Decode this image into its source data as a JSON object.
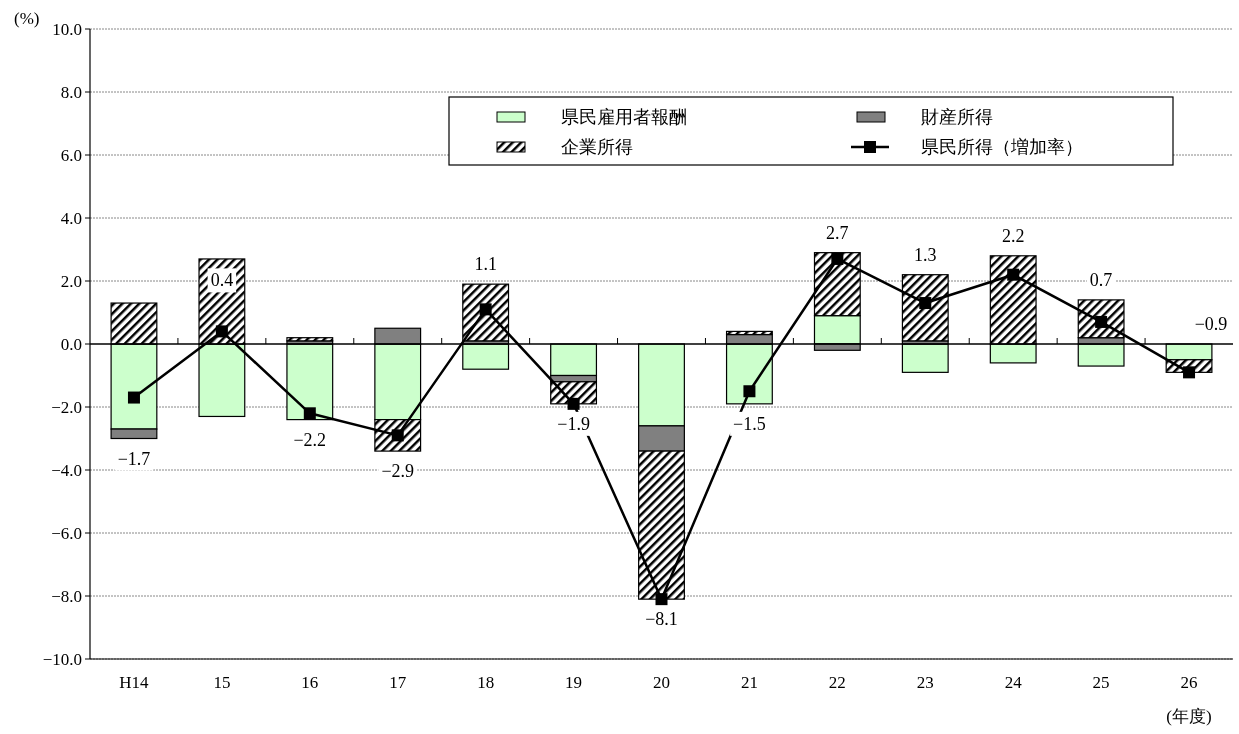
{
  "chart_data": {
    "type": "bar",
    "stacked": true,
    "xlabel": "(年度)",
    "ylabel": "(%)",
    "categories": [
      "H14",
      "15",
      "16",
      "17",
      "18",
      "19",
      "20",
      "21",
      "22",
      "23",
      "24",
      "25",
      "26"
    ],
    "series": [
      {
        "name": "県民雇用者報酬",
        "color": "#ccffcc",
        "values": [
          -2.7,
          -2.3,
          -2.4,
          -2.4,
          -0.8,
          -1.0,
          -2.6,
          -1.9,
          0.9,
          -0.9,
          -0.6,
          -0.7,
          -0.5
        ]
      },
      {
        "name": "財産所得",
        "color": "#808080",
        "values": [
          -0.3,
          0.0,
          0.1,
          0.5,
          0.1,
          -0.2,
          -0.8,
          0.3,
          -0.2,
          0.1,
          0.0,
          0.2,
          0.0
        ]
      },
      {
        "name": "企業所得",
        "color": "#000000",
        "values": [
          1.3,
          2.7,
          0.1,
          -1.0,
          1.8,
          -0.7,
          -4.7,
          0.1,
          2.0,
          2.1,
          2.8,
          1.2,
          -0.4
        ]
      },
      {
        "name": "県民所得（増加率）",
        "type": "line",
        "color": "#000000",
        "marker": "square",
        "values": [
          -1.7,
          0.4,
          -2.2,
          -2.9,
          1.1,
          -1.9,
          -8.1,
          -1.5,
          2.7,
          1.3,
          2.2,
          0.7,
          -0.9
        ],
        "value_labels": [
          "−1.7",
          "0.4",
          "−2.2",
          "−2.9",
          "1.1",
          "−1.9",
          "−8.1",
          "−1.5",
          "2.7",
          "1.3",
          "2.2",
          "0.7",
          "−0.9"
        ]
      }
    ],
    "ylim": [
      -10,
      10
    ],
    "yticks": [
      {
        "value": -10,
        "label": "−10.0"
      },
      {
        "value": -8,
        "label": "−8.0"
      },
      {
        "value": -6,
        "label": "−6.0"
      },
      {
        "value": -4,
        "label": "−4.0"
      },
      {
        "value": -2,
        "label": "−2.0"
      },
      {
        "value": 0,
        "label": "0.0"
      },
      {
        "value": 2,
        "label": "2.0"
      },
      {
        "value": 4,
        "label": "4.0"
      },
      {
        "value": 6,
        "label": "6.0"
      },
      {
        "value": 8,
        "label": "8.0"
      },
      {
        "value": 10,
        "label": "10.0"
      }
    ],
    "grid": "y",
    "legend": "top right"
  }
}
